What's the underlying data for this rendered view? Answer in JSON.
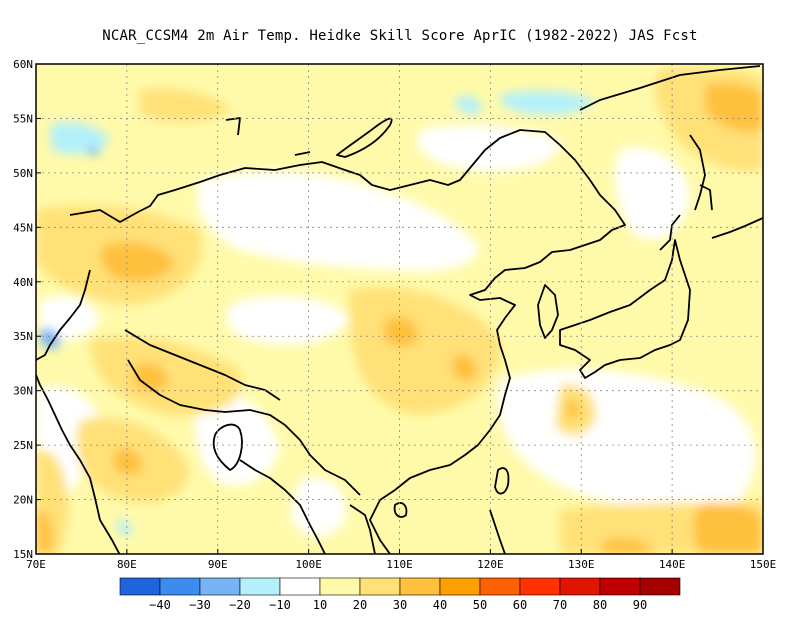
{
  "title": "NCAR_CCSM4  2m Air Temp. Heidke Skill Score AprIC (1982-2022) JAS Fcst",
  "map": {
    "lon_range": [
      70,
      150
    ],
    "lat_range": [
      15,
      60
    ],
    "lon_ticks": [
      "70E",
      "80E",
      "90E",
      "100E",
      "110E",
      "120E",
      "130E",
      "140E",
      "150E"
    ],
    "lat_ticks": [
      "15N",
      "20N",
      "25N",
      "30N",
      "35N",
      "40N",
      "45N",
      "50N",
      "55N",
      "60N"
    ],
    "grid": true
  },
  "colorbar": {
    "colors": [
      "#1e64dc",
      "#3c8cf0",
      "#78b4f5",
      "#b4f0fa",
      "#ffffff",
      "#fffaaa",
      "#ffe178",
      "#ffc03c",
      "#ffa000",
      "#ff6000",
      "#ff3200",
      "#e11400",
      "#c00000",
      "#a50000"
    ],
    "labels": [
      "-40",
      "-30",
      "-20",
      "-10",
      "10",
      "20",
      "30",
      "40",
      "50",
      "60",
      "70",
      "80",
      "90"
    ]
  },
  "colors": {
    "white": "#ffffff",
    "light_yellow": "#fffaaa",
    "yellow": "#ffe178",
    "orange": "#ffc03c",
    "light_cyan": "#b4f0fa",
    "light_blue": "#78b4f5"
  }
}
